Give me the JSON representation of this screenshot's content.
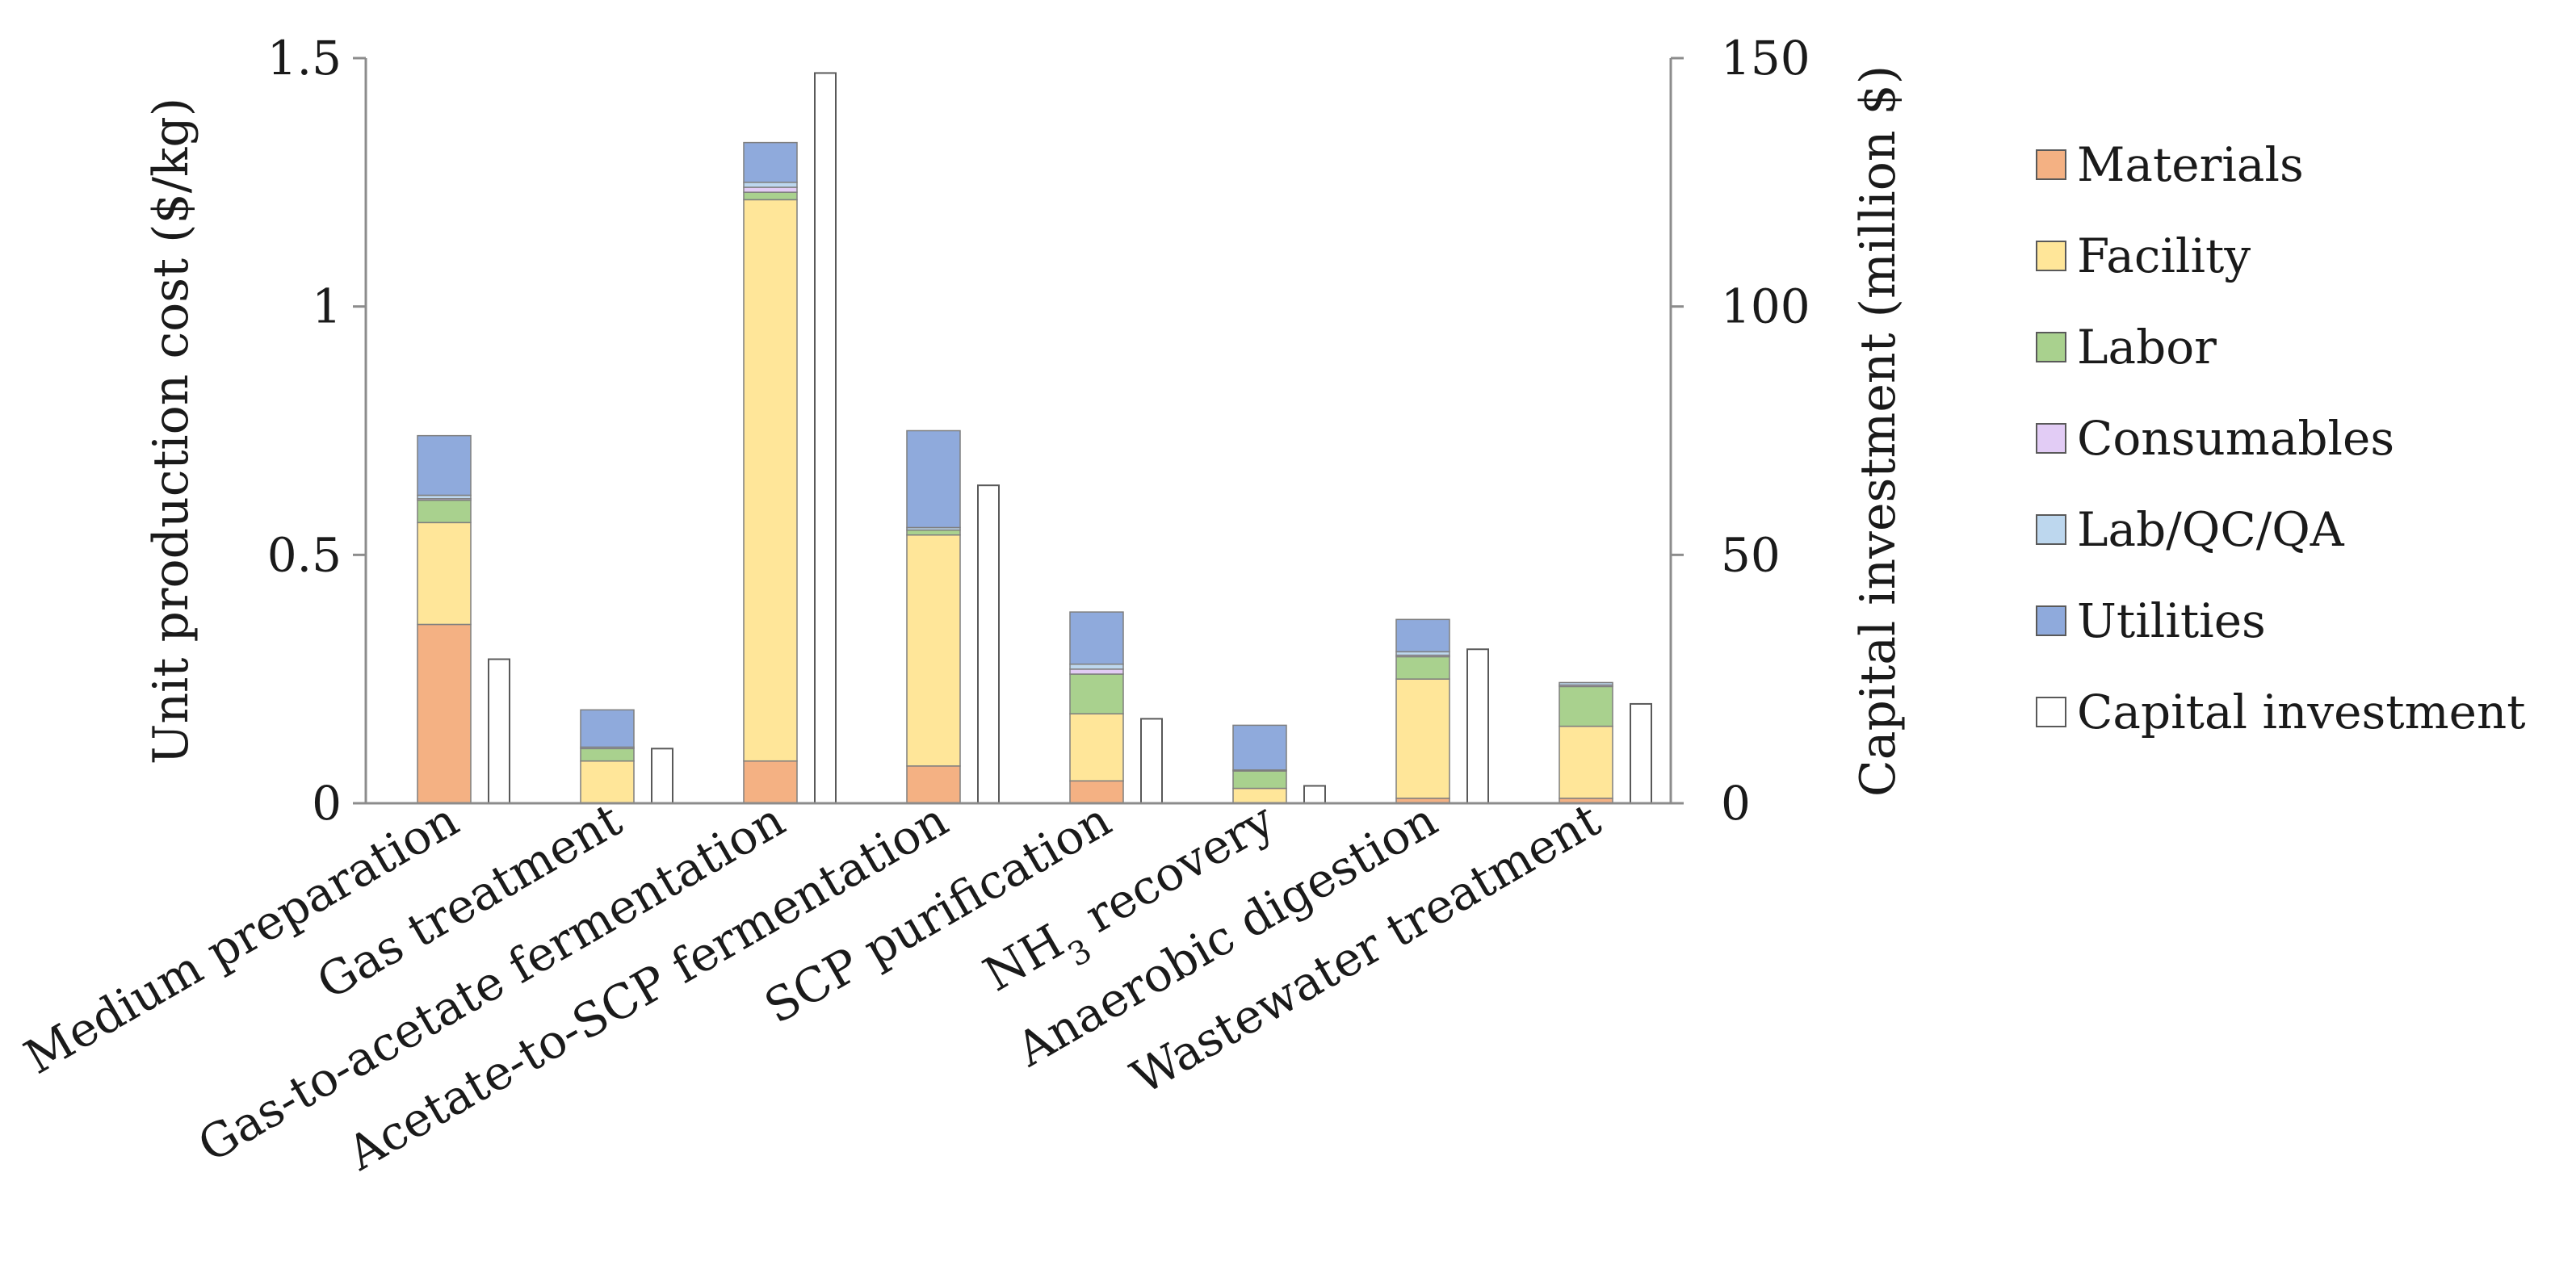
{
  "chart_data": {
    "type": "bar",
    "subtype": "stacked-bar-with-secondary-axis",
    "ylabel": "Unit production cost ($/kg)",
    "y2label": "Capital investment (million $)",
    "ylim": [
      0,
      1.5
    ],
    "y2lim": [
      0,
      150
    ],
    "yticks": [
      "0",
      "0.5",
      "1",
      "1.5"
    ],
    "y2ticks": [
      "0",
      "50",
      "100",
      "150"
    ],
    "grid": false,
    "legend_position": "right",
    "categories": [
      {
        "pre": "Medium preparation",
        "sub": "",
        "post": ""
      },
      {
        "pre": "Gas treatment",
        "sub": "",
        "post": ""
      },
      {
        "pre": "Gas-to-acetate fermentation",
        "sub": "",
        "post": ""
      },
      {
        "pre": "Acetate-to-SCP fermentation",
        "sub": "",
        "post": ""
      },
      {
        "pre": "SCP purification",
        "sub": "",
        "post": ""
      },
      {
        "pre": "NH",
        "sub": "3",
        "post": " recovery"
      },
      {
        "pre": "Anaerobic digestion",
        "sub": "",
        "post": ""
      },
      {
        "pre": "Wastewater treatment",
        "sub": "",
        "post": ""
      }
    ],
    "series": [
      {
        "name": "Materials",
        "color": "#F4B183",
        "values": [
          0.36,
          0.0,
          0.085,
          0.075,
          0.045,
          0.0,
          0.01,
          0.01
        ]
      },
      {
        "name": "Facility",
        "color": "#FFE699",
        "values": [
          0.205,
          0.085,
          1.13,
          0.465,
          0.135,
          0.03,
          0.24,
          0.145
        ]
      },
      {
        "name": "Labor",
        "color": "#A9D18E",
        "values": [
          0.045,
          0.025,
          0.015,
          0.01,
          0.08,
          0.035,
          0.045,
          0.08
        ]
      },
      {
        "name": "Consumables",
        "color": "#E2CCF5",
        "values": [
          0.003,
          0.0,
          0.01,
          0.0,
          0.01,
          0.0,
          0.003,
          0.003
        ]
      },
      {
        "name": "Lab/QC/QA",
        "color": "#BDD7EE",
        "values": [
          0.007,
          0.003,
          0.01,
          0.005,
          0.01,
          0.002,
          0.007,
          0.005
        ]
      },
      {
        "name": "Utilities",
        "color": "#8FAADC",
        "values": [
          0.12,
          0.075,
          0.08,
          0.195,
          0.105,
          0.09,
          0.065,
          0.0
        ]
      }
    ],
    "capital_series": {
      "name": "Capital investment",
      "color": "#FFFFFF",
      "axis": "secondary",
      "values": [
        29,
        11,
        147,
        64,
        17,
        3.5,
        31,
        20
      ]
    }
  }
}
